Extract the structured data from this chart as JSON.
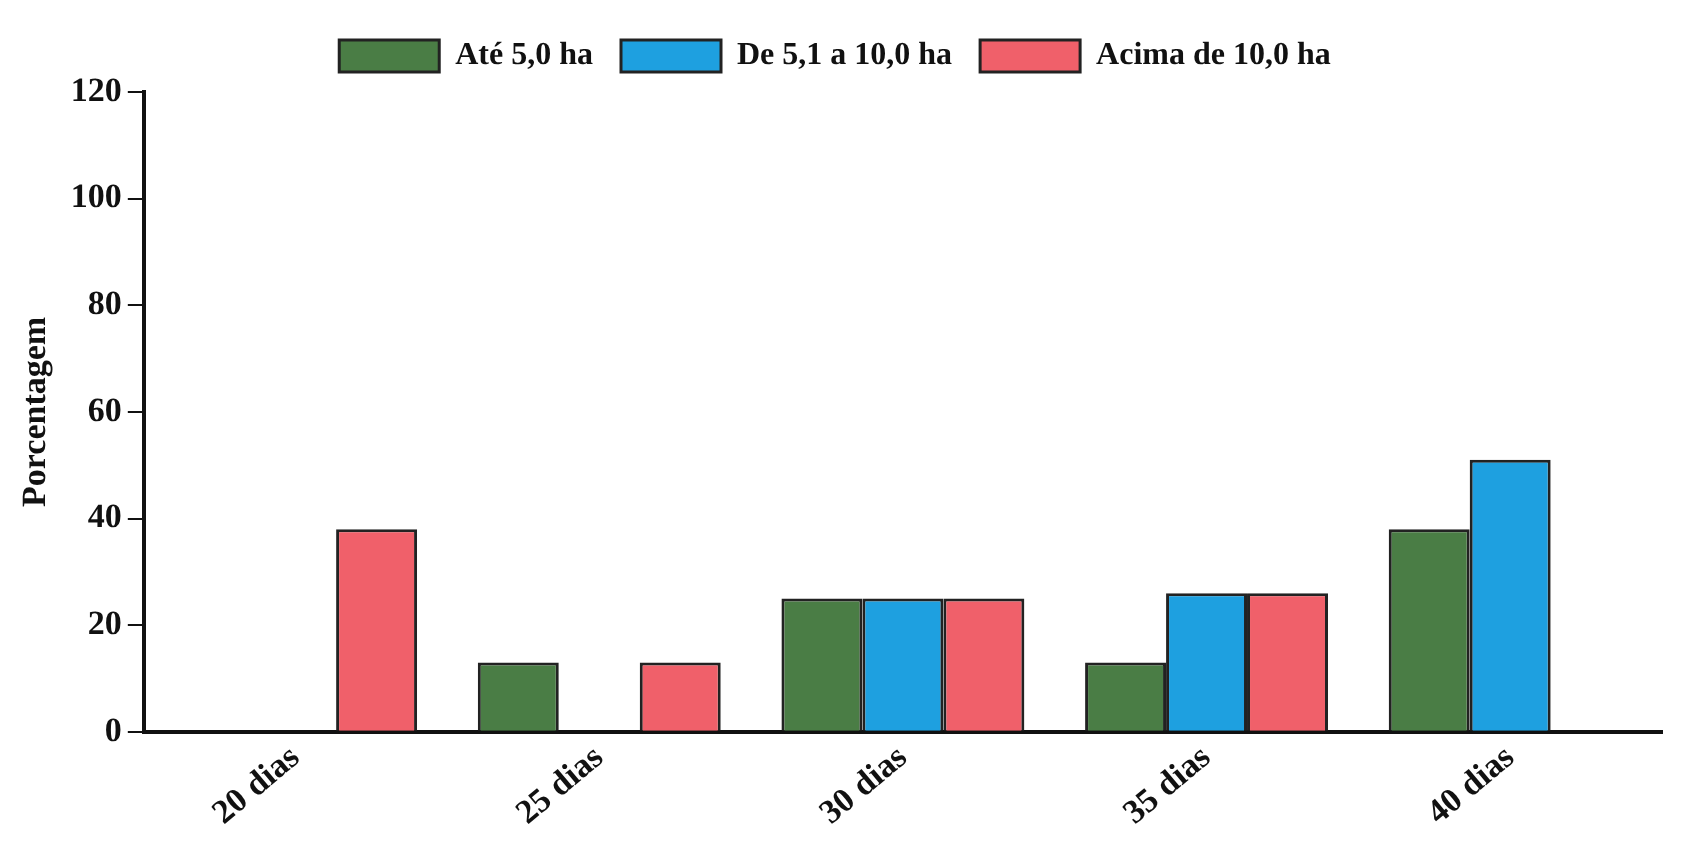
{
  "chart_data": {
    "type": "bar",
    "ylabel": "Porcentagem",
    "categories": [
      "20 dias",
      "25 dias",
      "30 dias",
      "35 dias",
      "40 dias"
    ],
    "series": [
      {
        "name": "Até 5,0 ha",
        "color": "#4a7d45",
        "values": [
          null,
          13,
          25,
          13,
          38
        ]
      },
      {
        "name": "De 5,1 a 10,0 ha",
        "color": "#1ea0e0",
        "values": [
          null,
          null,
          25,
          26,
          51
        ]
      },
      {
        "name": "Acima de 10,0 ha",
        "color": "#f0606a",
        "values": [
          38,
          13,
          25,
          26,
          null
        ]
      }
    ],
    "ylim": [
      0,
      120
    ],
    "yticks": [
      0,
      20,
      40,
      60,
      80,
      100,
      120
    ],
    "grid": false,
    "legend": "top"
  }
}
